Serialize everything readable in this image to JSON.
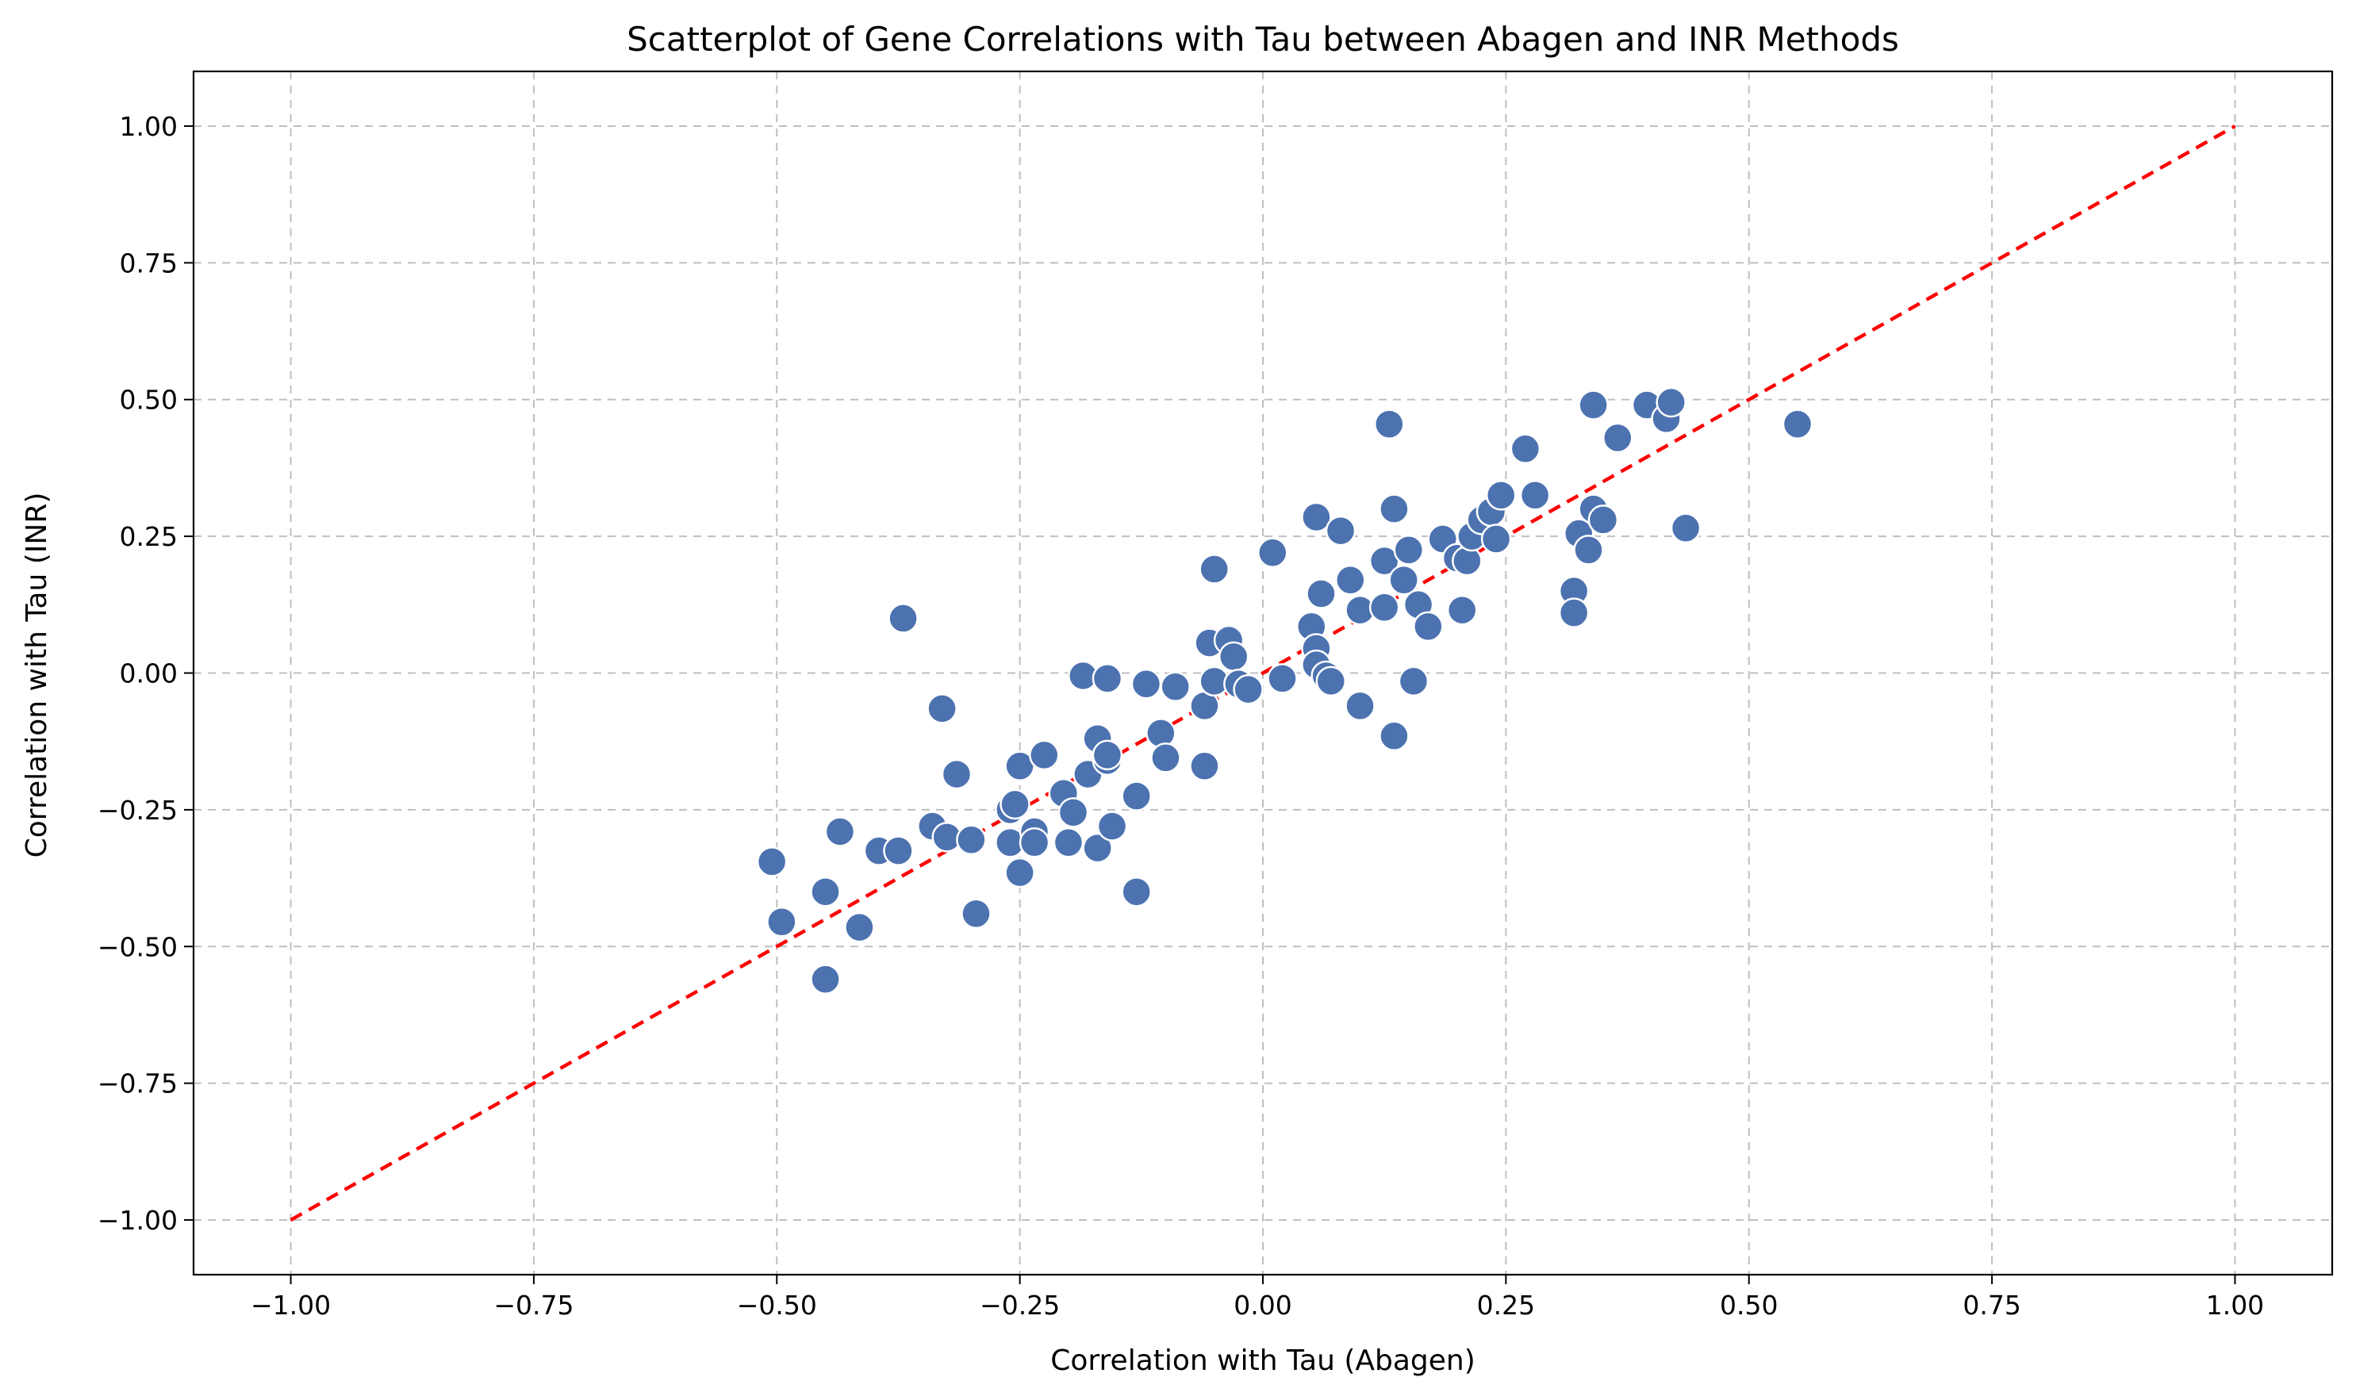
{
  "chart_data": {
    "type": "scatter",
    "title": "Scatterplot of Gene Correlations with Tau between Abagen and INR Methods",
    "xlabel": "Correlation with Tau (Abagen)",
    "ylabel": "Correlation with Tau (INR)",
    "xlim": [
      -1.1,
      1.1
    ],
    "ylim": [
      -1.1,
      1.1
    ],
    "x_ticks": [
      -1.0,
      -0.75,
      -0.5,
      -0.25,
      0.0,
      0.25,
      0.5,
      0.75,
      1.0
    ],
    "y_ticks": [
      -1.0,
      -0.75,
      -0.5,
      -0.25,
      0.0,
      0.25,
      0.5,
      0.75,
      1.0
    ],
    "x_tick_labels": [
      "−1.00",
      "−0.75",
      "−0.50",
      "−0.25",
      "0.00",
      "0.25",
      "0.50",
      "0.75",
      "1.00"
    ],
    "y_tick_labels": [
      "−1.00",
      "−0.75",
      "−0.50",
      "−0.25",
      "0.00",
      "0.25",
      "0.50",
      "0.75",
      "1.00"
    ],
    "grid": true,
    "point_color": "#4c72b0",
    "reference_line": {
      "from": [
        -1.0,
        -1.0
      ],
      "to": [
        1.0,
        1.0
      ],
      "style": "dashed",
      "color": "#ff0000"
    },
    "points": [
      [
        -0.505,
        -0.345
      ],
      [
        -0.495,
        -0.455
      ],
      [
        -0.45,
        -0.4
      ],
      [
        -0.45,
        -0.56
      ],
      [
        -0.435,
        -0.29
      ],
      [
        -0.415,
        -0.465
      ],
      [
        -0.395,
        -0.325
      ],
      [
        -0.375,
        -0.325
      ],
      [
        -0.37,
        0.1
      ],
      [
        -0.34,
        -0.28
      ],
      [
        -0.33,
        -0.065
      ],
      [
        -0.325,
        -0.3
      ],
      [
        -0.315,
        -0.185
      ],
      [
        -0.3,
        -0.305
      ],
      [
        -0.295,
        -0.44
      ],
      [
        -0.26,
        -0.25
      ],
      [
        -0.26,
        -0.31
      ],
      [
        -0.255,
        -0.24
      ],
      [
        -0.25,
        -0.17
      ],
      [
        -0.25,
        -0.365
      ],
      [
        -0.235,
        -0.29
      ],
      [
        -0.235,
        -0.31
      ],
      [
        -0.225,
        -0.15
      ],
      [
        -0.205,
        -0.22
      ],
      [
        -0.2,
        -0.31
      ],
      [
        -0.195,
        -0.255
      ],
      [
        -0.185,
        -0.005
      ],
      [
        -0.18,
        -0.185
      ],
      [
        -0.17,
        -0.12
      ],
      [
        -0.17,
        -0.32
      ],
      [
        -0.16,
        -0.01
      ],
      [
        -0.16,
        -0.16
      ],
      [
        -0.16,
        -0.15
      ],
      [
        -0.155,
        -0.28
      ],
      [
        -0.13,
        -0.4
      ],
      [
        -0.13,
        -0.225
      ],
      [
        -0.12,
        -0.02
      ],
      [
        -0.105,
        -0.11
      ],
      [
        -0.1,
        -0.155
      ],
      [
        -0.09,
        -0.025
      ],
      [
        -0.06,
        -0.17
      ],
      [
        -0.06,
        -0.06
      ],
      [
        -0.055,
        0.055
      ],
      [
        -0.05,
        0.19
      ],
      [
        -0.05,
        -0.015
      ],
      [
        -0.035,
        0.06
      ],
      [
        -0.03,
        0.03
      ],
      [
        -0.025,
        -0.02
      ],
      [
        -0.015,
        -0.03
      ],
      [
        0.01,
        0.22
      ],
      [
        0.02,
        -0.01
      ],
      [
        0.05,
        0.085
      ],
      [
        0.055,
        0.045
      ],
      [
        0.055,
        0.015
      ],
      [
        0.055,
        0.285
      ],
      [
        0.06,
        0.145
      ],
      [
        0.065,
        -0.005
      ],
      [
        0.07,
        -0.015
      ],
      [
        0.08,
        0.26
      ],
      [
        0.09,
        0.17
      ],
      [
        0.1,
        0.115
      ],
      [
        0.1,
        -0.06
      ],
      [
        0.125,
        0.12
      ],
      [
        0.125,
        0.205
      ],
      [
        0.13,
        0.455
      ],
      [
        0.135,
        0.3
      ],
      [
        0.135,
        -0.115
      ],
      [
        0.145,
        0.17
      ],
      [
        0.15,
        0.225
      ],
      [
        0.155,
        -0.015
      ],
      [
        0.16,
        0.125
      ],
      [
        0.17,
        0.085
      ],
      [
        0.185,
        0.245
      ],
      [
        0.2,
        0.21
      ],
      [
        0.205,
        0.115
      ],
      [
        0.21,
        0.205
      ],
      [
        0.215,
        0.25
      ],
      [
        0.225,
        0.28
      ],
      [
        0.235,
        0.295
      ],
      [
        0.24,
        0.245
      ],
      [
        0.245,
        0.325
      ],
      [
        0.27,
        0.41
      ],
      [
        0.28,
        0.325
      ],
      [
        0.32,
        0.15
      ],
      [
        0.32,
        0.11
      ],
      [
        0.325,
        0.255
      ],
      [
        0.335,
        0.225
      ],
      [
        0.34,
        0.49
      ],
      [
        0.34,
        0.3
      ],
      [
        0.35,
        0.28
      ],
      [
        0.365,
        0.43
      ],
      [
        0.395,
        0.49
      ],
      [
        0.415,
        0.465
      ],
      [
        0.42,
        0.495
      ],
      [
        0.435,
        0.265
      ],
      [
        0.55,
        0.455
      ]
    ]
  }
}
